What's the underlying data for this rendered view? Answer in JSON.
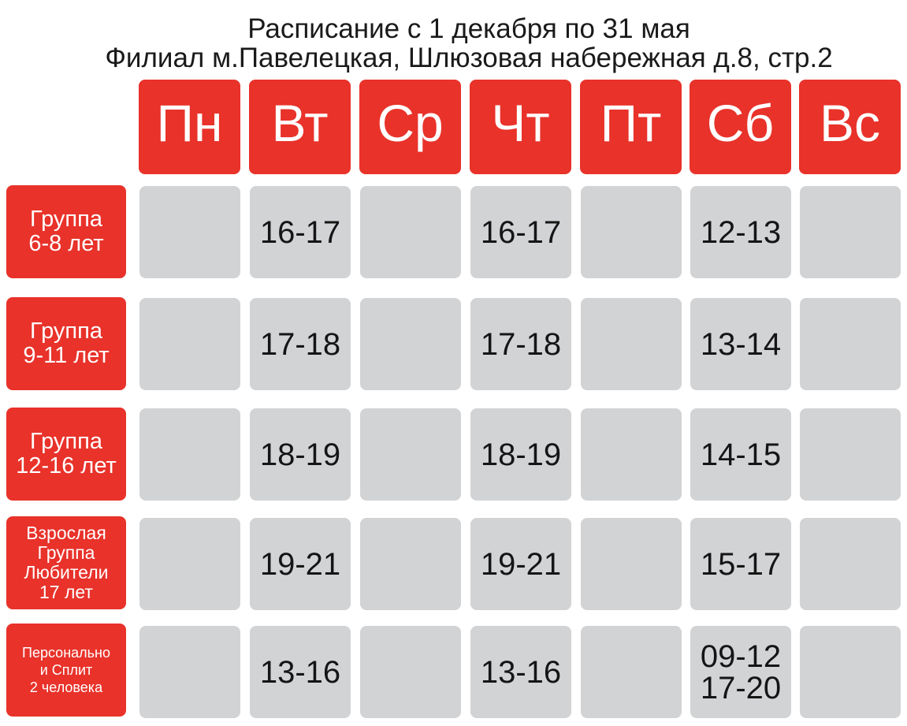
{
  "header": {
    "line1": "Расписание с 1 декабря по 31 мая",
    "line2": "Филиал м.Павелецкая, Шлюзовая набережная д.8, стр.2"
  },
  "days": [
    "Пн",
    "Вт",
    "Ср",
    "Чт",
    "Пт",
    "Сб",
    "Вс"
  ],
  "groups": [
    {
      "lines": [
        "Группа",
        "6-8 лет"
      ]
    },
    {
      "lines": [
        "Группа",
        "9-11 лет"
      ]
    },
    {
      "lines": [
        "Группа",
        "12-16 лет"
      ]
    },
    {
      "lines": [
        "Взрослая",
        "Группа",
        "Любители",
        "17 лет"
      ]
    },
    {
      "lines": [
        "Персонально",
        "и Сплит",
        "2 человека"
      ]
    }
  ],
  "schedule": [
    [
      [],
      [
        "16-17"
      ],
      [],
      [
        "16-17"
      ],
      [],
      [
        "12-13"
      ],
      []
    ],
    [
      [],
      [
        "17-18"
      ],
      [],
      [
        "17-18"
      ],
      [],
      [
        "13-14"
      ],
      []
    ],
    [
      [],
      [
        "18-19"
      ],
      [],
      [
        "18-19"
      ],
      [],
      [
        "14-15"
      ],
      []
    ],
    [
      [],
      [
        "19-21"
      ],
      [],
      [
        "19-21"
      ],
      [],
      [
        "15-17"
      ],
      []
    ],
    [
      [],
      [
        "13-16"
      ],
      [],
      [
        "13-16"
      ],
      [],
      [
        "09-12",
        "17-20"
      ],
      []
    ]
  ],
  "colors": {
    "header_red": "#e8322a",
    "cell_gray": "#d2d3d5"
  }
}
